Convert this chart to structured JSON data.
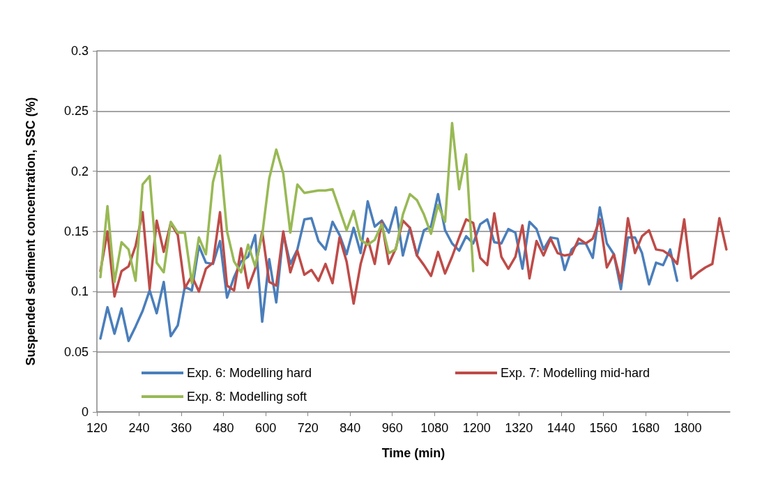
{
  "chart_data": {
    "type": "line",
    "xlabel": "Time (min)",
    "ylabel": "Suspended sediment concentration, SSC (%)",
    "xlim": [
      120,
      1920
    ],
    "xticks": [
      120,
      240,
      360,
      480,
      600,
      720,
      840,
      960,
      1080,
      1200,
      1320,
      1440,
      1560,
      1680,
      1800
    ],
    "ylim": [
      0,
      0.3
    ],
    "yticks": [
      0,
      0.05,
      0.1,
      0.15,
      0.2,
      0.25,
      0.3
    ],
    "grid": "y",
    "legend": "bottom left",
    "marker": "none",
    "line_style": "solid",
    "series": [
      {
        "name": "Exp. 6: Modelling hard",
        "color": "#4a7ebb",
        "x": [
          130,
          150,
          170,
          190,
          210,
          230,
          250,
          270,
          290,
          310,
          330,
          350,
          370,
          390,
          410,
          430,
          450,
          470,
          490,
          510,
          530,
          550,
          570,
          590,
          610,
          630,
          650,
          670,
          690,
          710,
          730,
          750,
          770,
          790,
          810,
          830,
          850,
          870,
          890,
          910,
          930,
          950,
          970,
          990,
          1010,
          1030,
          1050,
          1070,
          1090,
          1110,
          1130,
          1150,
          1170,
          1190,
          1210,
          1230,
          1250,
          1270,
          1290,
          1310,
          1330,
          1350,
          1370,
          1390,
          1410,
          1430,
          1450,
          1470,
          1490,
          1510,
          1530,
          1550,
          1570,
          1590,
          1610,
          1630,
          1650,
          1670,
          1690,
          1710,
          1730,
          1750,
          1770
        ],
        "values": [
          0.061,
          0.087,
          0.065,
          0.086,
          0.059,
          0.071,
          0.084,
          0.101,
          0.082,
          0.108,
          0.063,
          0.072,
          0.104,
          0.101,
          0.138,
          0.124,
          0.123,
          0.142,
          0.095,
          0.112,
          0.125,
          0.129,
          0.147,
          0.075,
          0.127,
          0.091,
          0.148,
          0.123,
          0.135,
          0.16,
          0.161,
          0.142,
          0.135,
          0.158,
          0.147,
          0.131,
          0.153,
          0.132,
          0.175,
          0.154,
          0.159,
          0.149,
          0.17,
          0.13,
          0.153,
          0.13,
          0.151,
          0.154,
          0.181,
          0.151,
          0.14,
          0.134,
          0.146,
          0.14,
          0.156,
          0.16,
          0.141,
          0.14,
          0.152,
          0.149,
          0.119,
          0.158,
          0.152,
          0.135,
          0.145,
          0.144,
          0.118,
          0.135,
          0.14,
          0.14,
          0.128,
          0.17,
          0.14,
          0.131,
          0.102,
          0.145,
          0.145,
          0.132,
          0.106,
          0.124,
          0.122,
          0.135,
          0.109
        ]
      },
      {
        "name": "Exp. 7: Modelling mid-hard",
        "color": "#be4b48",
        "x": [
          130,
          150,
          170,
          190,
          210,
          230,
          250,
          270,
          290,
          310,
          330,
          350,
          370,
          390,
          410,
          430,
          450,
          470,
          490,
          510,
          530,
          550,
          570,
          590,
          610,
          630,
          650,
          670,
          690,
          710,
          730,
          750,
          770,
          790,
          810,
          830,
          850,
          870,
          890,
          910,
          930,
          950,
          970,
          990,
          1010,
          1030,
          1050,
          1070,
          1090,
          1110,
          1130,
          1150,
          1170,
          1190,
          1210,
          1230,
          1250,
          1270,
          1290,
          1310,
          1330,
          1350,
          1370,
          1390,
          1410,
          1430,
          1450,
          1470,
          1490,
          1510,
          1530,
          1550,
          1570,
          1590,
          1610,
          1630,
          1650,
          1670,
          1690,
          1710,
          1730,
          1750,
          1770,
          1790,
          1810,
          1830,
          1850,
          1870,
          1890,
          1910
        ],
        "values": [
          0.117,
          0.15,
          0.096,
          0.117,
          0.121,
          0.138,
          0.166,
          0.102,
          0.159,
          0.133,
          0.157,
          0.147,
          0.103,
          0.113,
          0.1,
          0.119,
          0.124,
          0.166,
          0.105,
          0.101,
          0.136,
          0.103,
          0.119,
          0.15,
          0.108,
          0.105,
          0.15,
          0.116,
          0.134,
          0.114,
          0.118,
          0.109,
          0.123,
          0.107,
          0.145,
          0.125,
          0.09,
          0.123,
          0.144,
          0.123,
          0.158,
          0.123,
          0.136,
          0.159,
          0.153,
          0.13,
          0.122,
          0.113,
          0.133,
          0.115,
          0.129,
          0.145,
          0.16,
          0.157,
          0.128,
          0.122,
          0.165,
          0.129,
          0.119,
          0.129,
          0.155,
          0.111,
          0.142,
          0.13,
          0.144,
          0.132,
          0.13,
          0.131,
          0.144,
          0.14,
          0.144,
          0.16,
          0.12,
          0.131,
          0.108,
          0.161,
          0.132,
          0.146,
          0.151,
          0.135,
          0.134,
          0.13,
          0.123,
          0.16,
          0.111,
          0.116,
          0.12,
          0.123,
          0.161,
          0.135
        ]
      },
      {
        "name": "Exp. 8: Modelling soft",
        "color": "#98b954",
        "x": [
          130,
          150,
          170,
          190,
          210,
          230,
          250,
          270,
          290,
          310,
          330,
          350,
          370,
          390,
          410,
          430,
          450,
          470,
          490,
          510,
          530,
          550,
          570,
          590,
          610,
          630,
          650,
          670,
          690,
          710,
          730,
          750,
          770,
          790,
          810,
          830,
          850,
          870,
          890,
          910,
          930,
          950,
          970,
          990,
          1010,
          1030,
          1050,
          1070,
          1090,
          1110,
          1130,
          1150,
          1170,
          1190
        ],
        "values": [
          0.112,
          0.171,
          0.108,
          0.141,
          0.135,
          0.109,
          0.189,
          0.196,
          0.124,
          0.116,
          0.158,
          0.149,
          0.149,
          0.107,
          0.145,
          0.131,
          0.191,
          0.213,
          0.15,
          0.125,
          0.116,
          0.139,
          0.121,
          0.147,
          0.194,
          0.218,
          0.198,
          0.149,
          0.189,
          0.182,
          0.183,
          0.184,
          0.184,
          0.185,
          0.168,
          0.151,
          0.167,
          0.143,
          0.139,
          0.143,
          0.156,
          0.132,
          0.135,
          0.164,
          0.181,
          0.176,
          0.164,
          0.148,
          0.172,
          0.158,
          0.24,
          0.185,
          0.214,
          0.117
        ]
      }
    ]
  }
}
